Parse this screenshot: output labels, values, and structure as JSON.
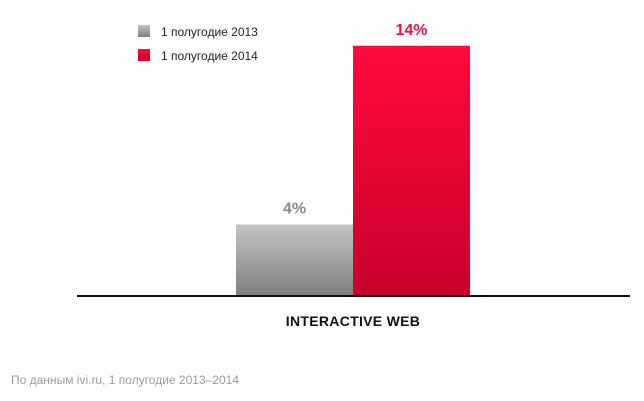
{
  "chart_data": {
    "type": "bar",
    "categories": [
      "INTERACTIVE WEB"
    ],
    "series": [
      {
        "name": "1 полугодие 2013",
        "values": [
          4
        ],
        "value_labels": [
          "4%"
        ],
        "color": "#8a8a8a"
      },
      {
        "name": "1 полугодие 2014",
        "values": [
          14
        ],
        "value_labels": [
          "14%"
        ],
        "color": "#e8003a"
      }
    ],
    "ylim": [
      0,
      16
    ],
    "legend_position": "top-left",
    "grid": false
  },
  "colors": {
    "gray_top": "#c4c4c4",
    "gray_bottom": "#7f7f7f",
    "red_top": "#ff0a3c",
    "red_bottom": "#c8002c",
    "gray_label": "#8a8a8a",
    "red_label": "#e8113a",
    "axis": "#111111"
  },
  "footnote": "По данным ivi.ru, 1 полугодие 2013–2014"
}
